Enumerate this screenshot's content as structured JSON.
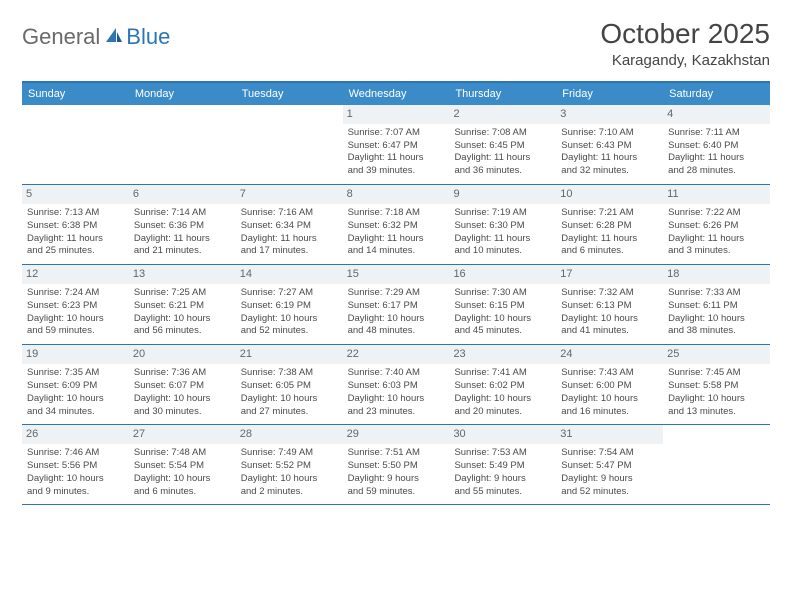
{
  "logo": {
    "general": "General",
    "blue": "Blue"
  },
  "title": "October 2025",
  "location": "Karagandy, Kazakhstan",
  "colors": {
    "header_bg": "#3b8bc9",
    "header_text": "#ffffff",
    "border": "#2e75b6",
    "daynum_bg": "#eef2f5",
    "daynum_text": "#666666",
    "body_text": "#4a4a4a",
    "logo_gray": "#6a6a6a",
    "logo_blue": "#2e75b6",
    "title_color": "#444444",
    "background": "#ffffff"
  },
  "fonts": {
    "family": "Arial, Helvetica, sans-serif",
    "title_size": 28,
    "location_size": 15,
    "weekday_size": 11,
    "daynum_size": 11,
    "body_size": 9.5
  },
  "weekdays": [
    "Sunday",
    "Monday",
    "Tuesday",
    "Wednesday",
    "Thursday",
    "Friday",
    "Saturday"
  ],
  "weeks": [
    [
      null,
      null,
      null,
      {
        "n": "1",
        "sr": "Sunrise: 7:07 AM",
        "ss": "Sunset: 6:47 PM",
        "d1": "Daylight: 11 hours",
        "d2": "and 39 minutes."
      },
      {
        "n": "2",
        "sr": "Sunrise: 7:08 AM",
        "ss": "Sunset: 6:45 PM",
        "d1": "Daylight: 11 hours",
        "d2": "and 36 minutes."
      },
      {
        "n": "3",
        "sr": "Sunrise: 7:10 AM",
        "ss": "Sunset: 6:43 PM",
        "d1": "Daylight: 11 hours",
        "d2": "and 32 minutes."
      },
      {
        "n": "4",
        "sr": "Sunrise: 7:11 AM",
        "ss": "Sunset: 6:40 PM",
        "d1": "Daylight: 11 hours",
        "d2": "and 28 minutes."
      }
    ],
    [
      {
        "n": "5",
        "sr": "Sunrise: 7:13 AM",
        "ss": "Sunset: 6:38 PM",
        "d1": "Daylight: 11 hours",
        "d2": "and 25 minutes."
      },
      {
        "n": "6",
        "sr": "Sunrise: 7:14 AM",
        "ss": "Sunset: 6:36 PM",
        "d1": "Daylight: 11 hours",
        "d2": "and 21 minutes."
      },
      {
        "n": "7",
        "sr": "Sunrise: 7:16 AM",
        "ss": "Sunset: 6:34 PM",
        "d1": "Daylight: 11 hours",
        "d2": "and 17 minutes."
      },
      {
        "n": "8",
        "sr": "Sunrise: 7:18 AM",
        "ss": "Sunset: 6:32 PM",
        "d1": "Daylight: 11 hours",
        "d2": "and 14 minutes."
      },
      {
        "n": "9",
        "sr": "Sunrise: 7:19 AM",
        "ss": "Sunset: 6:30 PM",
        "d1": "Daylight: 11 hours",
        "d2": "and 10 minutes."
      },
      {
        "n": "10",
        "sr": "Sunrise: 7:21 AM",
        "ss": "Sunset: 6:28 PM",
        "d1": "Daylight: 11 hours",
        "d2": "and 6 minutes."
      },
      {
        "n": "11",
        "sr": "Sunrise: 7:22 AM",
        "ss": "Sunset: 6:26 PM",
        "d1": "Daylight: 11 hours",
        "d2": "and 3 minutes."
      }
    ],
    [
      {
        "n": "12",
        "sr": "Sunrise: 7:24 AM",
        "ss": "Sunset: 6:23 PM",
        "d1": "Daylight: 10 hours",
        "d2": "and 59 minutes."
      },
      {
        "n": "13",
        "sr": "Sunrise: 7:25 AM",
        "ss": "Sunset: 6:21 PM",
        "d1": "Daylight: 10 hours",
        "d2": "and 56 minutes."
      },
      {
        "n": "14",
        "sr": "Sunrise: 7:27 AM",
        "ss": "Sunset: 6:19 PM",
        "d1": "Daylight: 10 hours",
        "d2": "and 52 minutes."
      },
      {
        "n": "15",
        "sr": "Sunrise: 7:29 AM",
        "ss": "Sunset: 6:17 PM",
        "d1": "Daylight: 10 hours",
        "d2": "and 48 minutes."
      },
      {
        "n": "16",
        "sr": "Sunrise: 7:30 AM",
        "ss": "Sunset: 6:15 PM",
        "d1": "Daylight: 10 hours",
        "d2": "and 45 minutes."
      },
      {
        "n": "17",
        "sr": "Sunrise: 7:32 AM",
        "ss": "Sunset: 6:13 PM",
        "d1": "Daylight: 10 hours",
        "d2": "and 41 minutes."
      },
      {
        "n": "18",
        "sr": "Sunrise: 7:33 AM",
        "ss": "Sunset: 6:11 PM",
        "d1": "Daylight: 10 hours",
        "d2": "and 38 minutes."
      }
    ],
    [
      {
        "n": "19",
        "sr": "Sunrise: 7:35 AM",
        "ss": "Sunset: 6:09 PM",
        "d1": "Daylight: 10 hours",
        "d2": "and 34 minutes."
      },
      {
        "n": "20",
        "sr": "Sunrise: 7:36 AM",
        "ss": "Sunset: 6:07 PM",
        "d1": "Daylight: 10 hours",
        "d2": "and 30 minutes."
      },
      {
        "n": "21",
        "sr": "Sunrise: 7:38 AM",
        "ss": "Sunset: 6:05 PM",
        "d1": "Daylight: 10 hours",
        "d2": "and 27 minutes."
      },
      {
        "n": "22",
        "sr": "Sunrise: 7:40 AM",
        "ss": "Sunset: 6:03 PM",
        "d1": "Daylight: 10 hours",
        "d2": "and 23 minutes."
      },
      {
        "n": "23",
        "sr": "Sunrise: 7:41 AM",
        "ss": "Sunset: 6:02 PM",
        "d1": "Daylight: 10 hours",
        "d2": "and 20 minutes."
      },
      {
        "n": "24",
        "sr": "Sunrise: 7:43 AM",
        "ss": "Sunset: 6:00 PM",
        "d1": "Daylight: 10 hours",
        "d2": "and 16 minutes."
      },
      {
        "n": "25",
        "sr": "Sunrise: 7:45 AM",
        "ss": "Sunset: 5:58 PM",
        "d1": "Daylight: 10 hours",
        "d2": "and 13 minutes."
      }
    ],
    [
      {
        "n": "26",
        "sr": "Sunrise: 7:46 AM",
        "ss": "Sunset: 5:56 PM",
        "d1": "Daylight: 10 hours",
        "d2": "and 9 minutes."
      },
      {
        "n": "27",
        "sr": "Sunrise: 7:48 AM",
        "ss": "Sunset: 5:54 PM",
        "d1": "Daylight: 10 hours",
        "d2": "and 6 minutes."
      },
      {
        "n": "28",
        "sr": "Sunrise: 7:49 AM",
        "ss": "Sunset: 5:52 PM",
        "d1": "Daylight: 10 hours",
        "d2": "and 2 minutes."
      },
      {
        "n": "29",
        "sr": "Sunrise: 7:51 AM",
        "ss": "Sunset: 5:50 PM",
        "d1": "Daylight: 9 hours",
        "d2": "and 59 minutes."
      },
      {
        "n": "30",
        "sr": "Sunrise: 7:53 AM",
        "ss": "Sunset: 5:49 PM",
        "d1": "Daylight: 9 hours",
        "d2": "and 55 minutes."
      },
      {
        "n": "31",
        "sr": "Sunrise: 7:54 AM",
        "ss": "Sunset: 5:47 PM",
        "d1": "Daylight: 9 hours",
        "d2": "and 52 minutes."
      },
      null
    ]
  ]
}
